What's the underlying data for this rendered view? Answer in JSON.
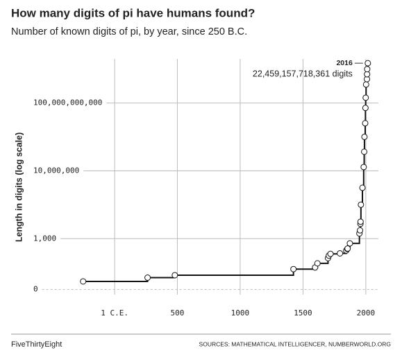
{
  "chart_data": {
    "type": "step",
    "title": "How many digits of pi have humans found?",
    "subtitle": "Number of known digits of pi, by year, since 250 B.C.",
    "ylabel": "Length in digits (log scale)",
    "log_y": true,
    "grid": true,
    "color": "#111111",
    "marker_fill": "#ffffff",
    "x": [
      -250,
      263,
      480,
      1424,
      1596,
      1615,
      1699,
      1706,
      1719,
      1794,
      1844,
      1853,
      1855,
      1873,
      1949,
      1954,
      1957,
      1958,
      1961,
      1973,
      1983,
      1987,
      1989,
      1995,
      1997,
      1999,
      2002,
      2009,
      2010,
      2011,
      2016
    ],
    "values": [
      3,
      5,
      7,
      16,
      20,
      35,
      71,
      100,
      127,
      136,
      200,
      248,
      261,
      527,
      2037,
      3089,
      7480,
      10000,
      100265,
      1001250,
      16777206,
      134214700,
      1011196691,
      6442450000,
      51539600000,
      206158430000,
      1241100000000,
      2576980377524,
      5000000000000,
      10000000000000,
      22459157718361
    ],
    "xlim": [
      -580,
      2100
    ],
    "xticks": [
      {
        "value": 1,
        "label": "1 C.E."
      },
      500,
      1000,
      1500,
      2000
    ],
    "ylim": [
      0.5,
      40000000000000
    ],
    "yticks": [
      {
        "value": 1,
        "label": "0"
      },
      {
        "value": 1000,
        "label": "1,000"
      },
      {
        "value": 10000000,
        "label": "10,000,000"
      },
      {
        "value": 100000000000,
        "label": "100,000,000,000"
      }
    ],
    "annotation": {
      "label": "2016",
      "text": "22,459,157,718,361 digits"
    },
    "footer": "FiveThirtyEight",
    "source": "SOURCES: MATHEMATICAL INTELLIGENCER, NUMBERWORLD.ORG"
  }
}
